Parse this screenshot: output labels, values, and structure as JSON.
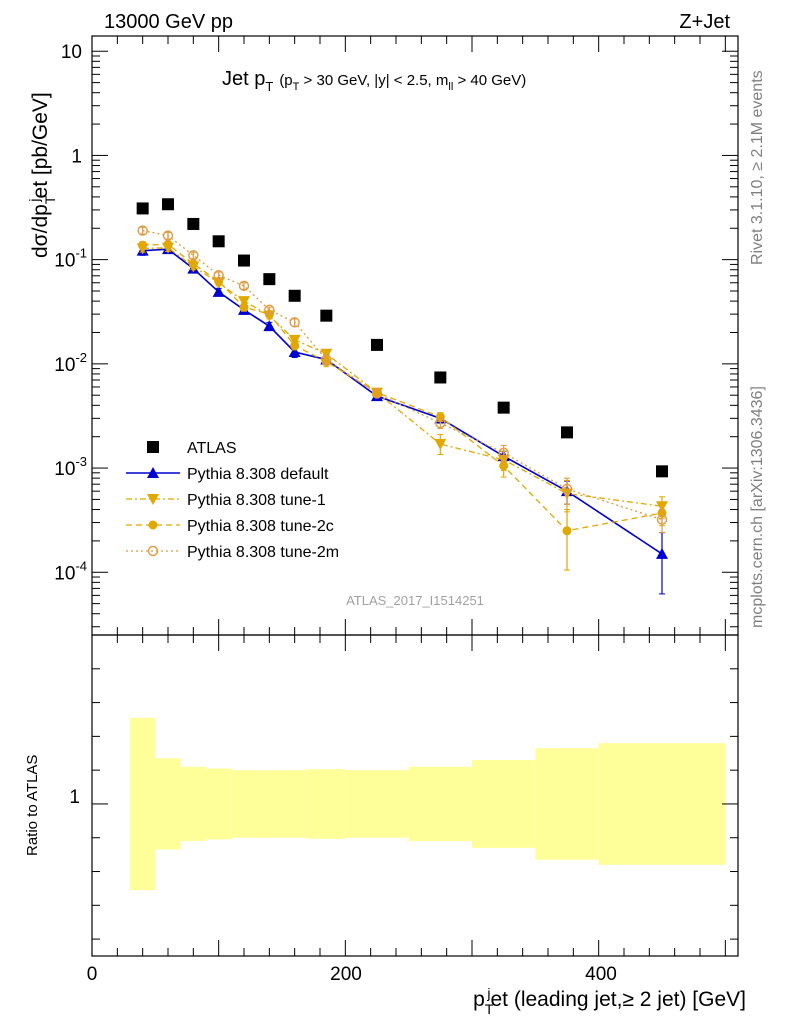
{
  "header": {
    "left": "13000 GeV pp",
    "right": "Z+Jet"
  },
  "sidebar": {
    "rivet": "Rivet 3.1.10, ≥ 2.1M events",
    "mcplots": "mcplots.cern.ch [arXiv:1306.3436]"
  },
  "title": {
    "main": "Jet p",
    "main_sub": "T",
    "cut_open": "(p",
    "cut_sub": "T",
    "cut_mid": " > 30 GeV, |y| < 2.5, m",
    "cut_sub2": "ll",
    "cut_close": " > 40 GeV)"
  },
  "analysis_id": "ATLAS_2017_I1514251",
  "axes": {
    "ylabel_top": {
      "a": "dσ/dp",
      "sub": "T",
      "sup": "j",
      "b": "et [pb/GeV]"
    },
    "ylabel_bottom": "Ratio to ATLAS",
    "xlabel": {
      "a": "p",
      "sub": "T",
      "sup": "j",
      "b": "et (leading jet,≥ 2 jet) [GeV]"
    },
    "xticks": [
      "0",
      "200",
      "400"
    ],
    "yticks_top": [
      {
        "base": "10",
        "exp": "-4",
        "value": 0.0001
      },
      {
        "base": "10",
        "exp": "-3",
        "value": 0.001
      },
      {
        "base": "10",
        "exp": "-2",
        "value": 0.01
      },
      {
        "base": "10",
        "exp": "-1",
        "value": 0.1
      },
      {
        "base": "1",
        "exp": "",
        "value": 1
      },
      {
        "base": "10",
        "exp": "",
        "value": 10
      }
    ],
    "ytick_bottom": "1"
  },
  "chart_data": {
    "type": "scatter",
    "title": "Jet pT (pT > 30 GeV, |y| < 2.5, mll > 40 GeV)",
    "xlabel": "pTjet (leading jet,≥ 2 jet) [GeV]",
    "ylabel": "dσ/dpTjet [pb/GeV]",
    "xlim": [
      0,
      510
    ],
    "ylim": [
      2.5e-05,
      14
    ],
    "y_scale": "log",
    "legend_position": "lower-left",
    "bins": [
      [
        30,
        50
      ],
      [
        50,
        70
      ],
      [
        70,
        90
      ],
      [
        90,
        110
      ],
      [
        110,
        130
      ],
      [
        130,
        150
      ],
      [
        150,
        170
      ],
      [
        170,
        200
      ],
      [
        200,
        250
      ],
      [
        250,
        300
      ],
      [
        300,
        350
      ],
      [
        350,
        400
      ],
      [
        400,
        500
      ]
    ],
    "series": [
      {
        "name": "ATLAS",
        "color": "#000000",
        "marker": "square",
        "x": [
          40,
          60,
          80,
          100,
          120,
          140,
          160,
          185,
          225,
          275,
          325,
          375,
          450
        ],
        "y": [
          0.31,
          0.34,
          0.22,
          0.15,
          0.098,
          0.065,
          0.045,
          0.029,
          0.0152,
          0.0074,
          0.0038,
          0.0022,
          0.00093
        ]
      },
      {
        "name": "Pythia 8.308 default",
        "color": "#0000d0",
        "marker": "triangle-up",
        "line": "solid",
        "x": [
          40,
          60,
          80,
          100,
          120,
          140,
          160,
          185,
          225,
          275,
          325,
          375,
          450
        ],
        "y": [
          0.122,
          0.126,
          0.082,
          0.049,
          0.033,
          0.023,
          0.013,
          0.011,
          0.0049,
          0.003,
          0.0013,
          0.0006,
          0.00015
        ],
        "err_low": [
          0.11,
          0.115,
          0.076,
          0.045,
          0.03,
          0.021,
          0.0115,
          0.0098,
          0.0045,
          0.0027,
          0.00115,
          0.00045,
          6.2e-05
        ],
        "err_high": [
          0.134,
          0.137,
          0.088,
          0.053,
          0.036,
          0.025,
          0.0145,
          0.0122,
          0.0053,
          0.0033,
          0.00145,
          0.00075,
          0.00024
        ]
      },
      {
        "name": "Pythia 8.308 tune-1",
        "color": "#e0a800",
        "marker": "triangle-down",
        "line": "dashdot",
        "x": [
          40,
          60,
          80,
          100,
          120,
          140,
          160,
          185,
          225,
          275,
          325,
          375,
          450
        ],
        "y": [
          0.128,
          0.13,
          0.086,
          0.06,
          0.04,
          0.029,
          0.017,
          0.0125,
          0.0053,
          0.0017,
          0.0012,
          0.00057,
          0.00043
        ],
        "err_low": [
          0.118,
          0.12,
          0.08,
          0.056,
          0.037,
          0.027,
          0.0155,
          0.0114,
          0.0049,
          0.00135,
          0.00095,
          0.00038,
          0.00033
        ],
        "err_high": [
          0.138,
          0.14,
          0.092,
          0.064,
          0.043,
          0.031,
          0.0185,
          0.0136,
          0.0057,
          0.0021,
          0.00145,
          0.00076,
          0.00053
        ]
      },
      {
        "name": "Pythia 8.308 tune-2c",
        "color": "#e0a800",
        "marker": "circle",
        "line": "dashed",
        "x": [
          40,
          60,
          80,
          100,
          120,
          140,
          160,
          185,
          225,
          275,
          325,
          375,
          450
        ],
        "y": [
          0.138,
          0.14,
          0.091,
          0.062,
          0.035,
          0.03,
          0.015,
          0.0105,
          0.0053,
          0.0031,
          0.00105,
          0.00025,
          0.00037
        ],
        "err_low": [
          0.128,
          0.13,
          0.085,
          0.058,
          0.032,
          0.028,
          0.0136,
          0.0094,
          0.0049,
          0.0028,
          0.00082,
          0.000105,
          0.00028
        ],
        "err_high": [
          0.148,
          0.15,
          0.097,
          0.066,
          0.038,
          0.032,
          0.0164,
          0.0116,
          0.0057,
          0.0034,
          0.0013,
          0.0004,
          0.00046
        ]
      },
      {
        "name": "Pythia 8.308 tune-2m",
        "color": "#e09a40",
        "marker": "open-circle",
        "line": "dotted",
        "x": [
          40,
          60,
          80,
          100,
          120,
          140,
          160,
          185,
          225,
          275,
          325,
          375,
          450
        ],
        "y": [
          0.19,
          0.17,
          0.11,
          0.071,
          0.056,
          0.033,
          0.025,
          0.011,
          0.0052,
          0.0027,
          0.0014,
          0.00063,
          0.00032
        ],
        "err_low": [
          0.176,
          0.158,
          0.102,
          0.066,
          0.052,
          0.031,
          0.023,
          0.0099,
          0.0048,
          0.0024,
          0.00115,
          0.00045,
          0.00024
        ],
        "err_high": [
          0.204,
          0.182,
          0.118,
          0.076,
          0.06,
          0.035,
          0.027,
          0.0121,
          0.0056,
          0.003,
          0.00165,
          0.0008,
          0.0004
        ]
      }
    ],
    "ratio": {
      "ylabel": "Ratio to ATLAS",
      "ylim": [
        0.55,
        1.5
      ],
      "band_color": "#ffff99",
      "band": [
        {
          "x0": 30,
          "x1": 50,
          "low": 0.745,
          "high": 1.255
        },
        {
          "x0": 50,
          "x1": 70,
          "low": 0.865,
          "high": 1.135
        },
        {
          "x0": 70,
          "x1": 90,
          "low": 0.89,
          "high": 1.11
        },
        {
          "x0": 90,
          "x1": 110,
          "low": 0.895,
          "high": 1.105
        },
        {
          "x0": 110,
          "x1": 130,
          "low": 0.9,
          "high": 1.1
        },
        {
          "x0": 130,
          "x1": 150,
          "low": 0.9,
          "high": 1.1
        },
        {
          "x0": 150,
          "x1": 170,
          "low": 0.9,
          "high": 1.1
        },
        {
          "x0": 170,
          "x1": 200,
          "low": 0.897,
          "high": 1.103
        },
        {
          "x0": 200,
          "x1": 250,
          "low": 0.9,
          "high": 1.1
        },
        {
          "x0": 250,
          "x1": 300,
          "low": 0.89,
          "high": 1.11
        },
        {
          "x0": 300,
          "x1": 350,
          "low": 0.87,
          "high": 1.13
        },
        {
          "x0": 350,
          "x1": 400,
          "low": 0.835,
          "high": 1.165
        },
        {
          "x0": 400,
          "x1": 500,
          "low": 0.82,
          "high": 1.18
        }
      ]
    }
  }
}
